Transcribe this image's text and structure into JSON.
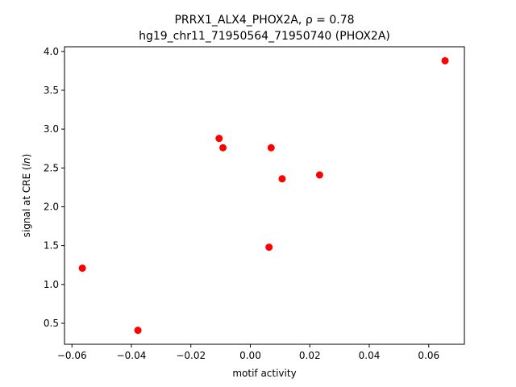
{
  "chart_data": {
    "type": "scatter",
    "title_line1": "PRRX1_ALX4_PHOX2A, ρ = 0.78",
    "title_line2": "hg19_chr11_71950564_71950740 (PHOX2A)",
    "xlabel": "motif activity",
    "ylabel_prefix": "signal at CRE (",
    "ylabel_italic": "ln",
    "ylabel_suffix": ")",
    "xlim": [
      -0.0625,
      0.072
    ],
    "ylim": [
      0.23,
      4.06
    ],
    "xticks": [
      -0.06,
      -0.04,
      -0.02,
      0.0,
      0.02,
      0.04,
      0.06
    ],
    "xtick_labels": [
      "−0.06",
      "−0.04",
      "−0.02",
      "0.00",
      "0.02",
      "0.04",
      "0.06"
    ],
    "yticks": [
      0.5,
      1.0,
      1.5,
      2.0,
      2.5,
      3.0,
      3.5,
      4.0
    ],
    "ytick_labels": [
      "0.5",
      "1.0",
      "1.5",
      "2.0",
      "2.5",
      "3.0",
      "3.5",
      "4.0"
    ],
    "marker_color": "#ff0000",
    "grid": false,
    "points": [
      {
        "x": -0.0565,
        "y": 1.21
      },
      {
        "x": -0.0378,
        "y": 0.41
      },
      {
        "x": -0.0105,
        "y": 2.88
      },
      {
        "x": -0.0092,
        "y": 2.76
      },
      {
        "x": 0.0063,
        "y": 1.48
      },
      {
        "x": 0.007,
        "y": 2.76
      },
      {
        "x": 0.0107,
        "y": 2.36
      },
      {
        "x": 0.0233,
        "y": 2.41
      },
      {
        "x": 0.0655,
        "y": 3.88
      }
    ]
  }
}
